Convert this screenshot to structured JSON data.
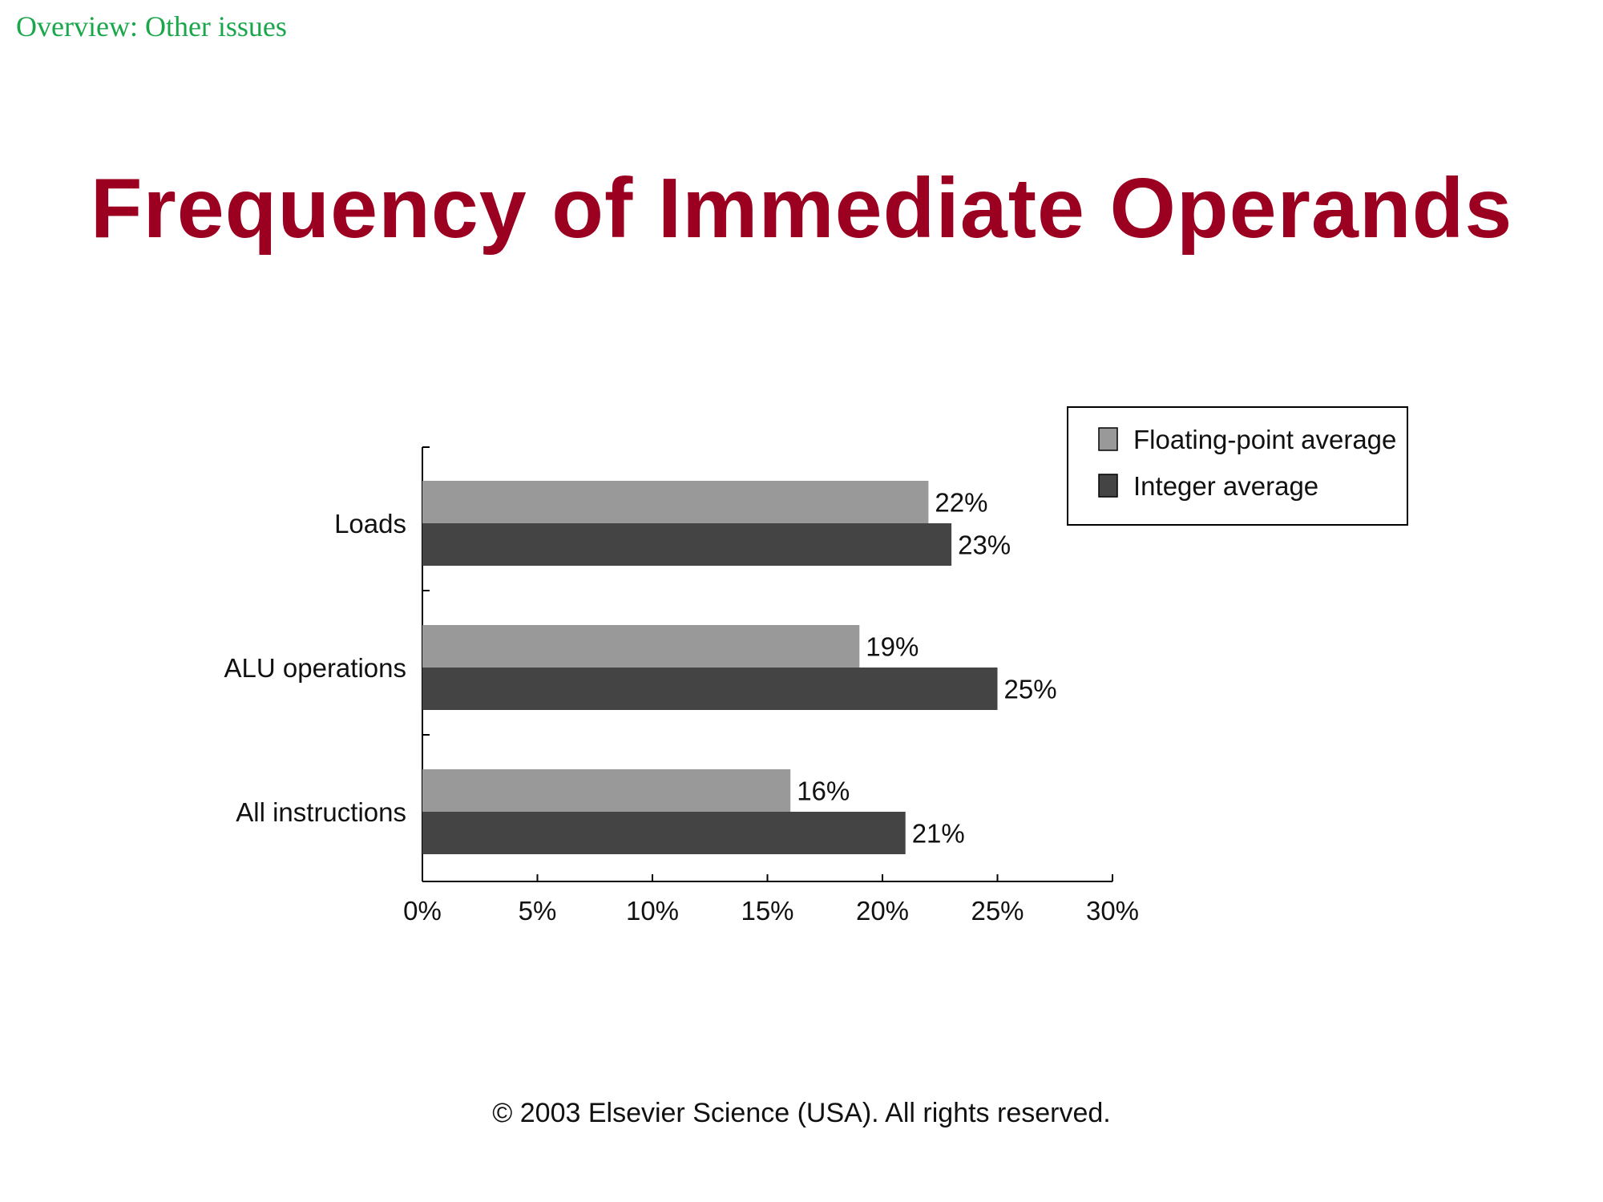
{
  "header": {
    "section_label": "Overview: Other issues",
    "title": "Frequency of Immediate Operands"
  },
  "footer": {
    "copyright": "© 2003 Elsevier Science (USA). All rights reserved."
  },
  "colors": {
    "title": "#9b0020",
    "section_label": "#1aa64a",
    "floating_point": "#999999",
    "integer": "#444444"
  },
  "chart_data": {
    "type": "bar",
    "orientation": "horizontal",
    "categories": [
      "Loads",
      "ALU operations",
      "All instructions"
    ],
    "series": [
      {
        "name": "Floating-point average",
        "values": [
          22,
          19,
          16
        ],
        "labels": [
          "22%",
          "19%",
          "16%"
        ],
        "color": "#999999"
      },
      {
        "name": "Integer average",
        "values": [
          23,
          25,
          21
        ],
        "labels": [
          "23%",
          "25%",
          "21%"
        ],
        "color": "#444444"
      }
    ],
    "xlim": [
      0,
      30
    ],
    "xticks": [
      0,
      5,
      10,
      15,
      20,
      25,
      30
    ],
    "xtick_labels": [
      "0%",
      "5%",
      "10%",
      "15%",
      "20%",
      "25%",
      "30%"
    ],
    "title": "",
    "xlabel": "",
    "ylabel": "",
    "grid": false,
    "legend_position": "top-right"
  }
}
